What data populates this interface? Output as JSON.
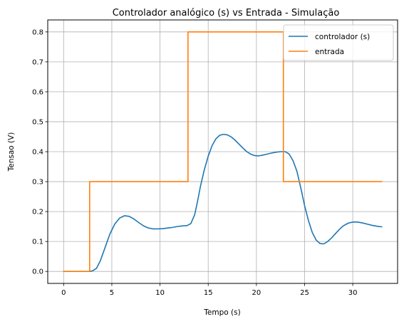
{
  "chart_data": {
    "type": "line",
    "title": "Controlador analógico (s) vs Entrada - Simulação",
    "xlabel": "Tempo (s)",
    "ylabel": "Tensao (V)",
    "xlim": [
      -1.65,
      34.65
    ],
    "ylim": [
      -0.04,
      0.84
    ],
    "xticks": [
      0,
      5,
      10,
      15,
      20,
      25,
      30
    ],
    "yticks": [
      0.0,
      0.1,
      0.2,
      0.3,
      0.4,
      0.5,
      0.6,
      0.7,
      0.8
    ],
    "grid": true,
    "legend_position": "top-right",
    "series": [
      {
        "name": "controlador (s)",
        "color": "#1f77b4",
        "x": [
          0,
          2.7,
          3.0,
          3.4,
          3.8,
          4.3,
          4.8,
          5.3,
          5.8,
          6.3,
          6.8,
          7.3,
          7.8,
          8.3,
          8.8,
          9.3,
          9.8,
          10.3,
          10.8,
          11.3,
          11.8,
          12.3,
          12.8,
          13.2,
          13.6,
          13.9,
          14.2,
          14.6,
          15.0,
          15.4,
          15.8,
          16.2,
          16.6,
          17.0,
          17.4,
          17.8,
          18.2,
          18.6,
          19.0,
          19.4,
          19.8,
          20.2,
          20.6,
          21.0,
          21.5,
          22.0,
          22.5,
          23.0,
          23.4,
          23.8,
          24.2,
          24.6,
          25.0,
          25.4,
          25.8,
          26.2,
          26.6,
          27.0,
          27.4,
          27.8,
          28.2,
          28.6,
          29.0,
          29.5,
          30.0,
          30.5,
          31.0,
          31.5,
          32.0,
          32.5,
          33.0
        ],
        "y": [
          0.0,
          0.0,
          0.002,
          0.01,
          0.035,
          0.08,
          0.125,
          0.158,
          0.178,
          0.186,
          0.184,
          0.175,
          0.163,
          0.152,
          0.145,
          0.142,
          0.142,
          0.143,
          0.145,
          0.147,
          0.15,
          0.152,
          0.153,
          0.16,
          0.19,
          0.235,
          0.285,
          0.34,
          0.385,
          0.42,
          0.443,
          0.455,
          0.458,
          0.456,
          0.449,
          0.438,
          0.425,
          0.412,
          0.4,
          0.392,
          0.387,
          0.386,
          0.388,
          0.391,
          0.395,
          0.398,
          0.4,
          0.4,
          0.392,
          0.37,
          0.335,
          0.28,
          0.22,
          0.17,
          0.13,
          0.105,
          0.093,
          0.092,
          0.1,
          0.112,
          0.126,
          0.14,
          0.152,
          0.161,
          0.165,
          0.165,
          0.162,
          0.158,
          0.154,
          0.151,
          0.149
        ]
      },
      {
        "name": "entrada",
        "color": "#ff7f0e",
        "x": [
          0,
          2.7,
          2.7,
          12.9,
          12.9,
          22.8,
          22.8,
          33.0
        ],
        "y": [
          0.0,
          0.0,
          0.3,
          0.3,
          0.8,
          0.8,
          0.3,
          0.3
        ]
      }
    ]
  }
}
